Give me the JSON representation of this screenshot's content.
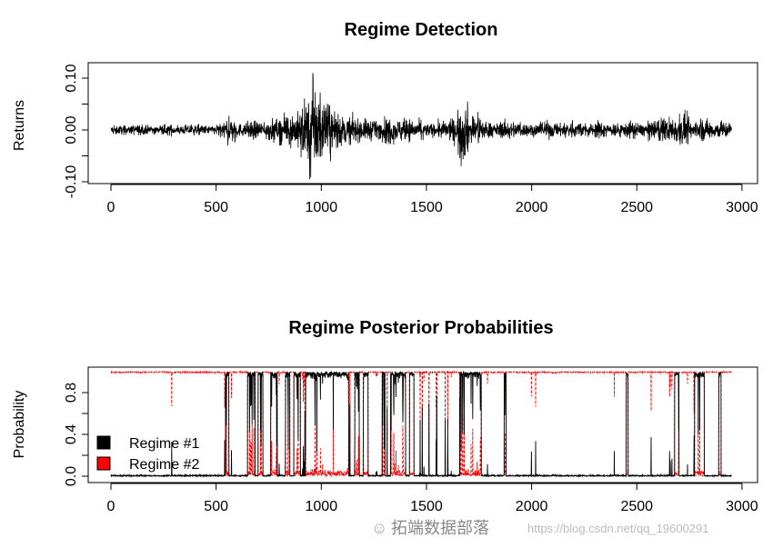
{
  "chart_data": [
    {
      "type": "line",
      "title": "Regime Detection",
      "xlabel": "",
      "ylabel": "Returns",
      "xlim": [
        0,
        3000
      ],
      "ylim": [
        -0.1,
        0.1
      ],
      "xticks": [
        0,
        500,
        1000,
        1500,
        2000,
        2500,
        3000
      ],
      "xtick_labels": [
        "0",
        "500",
        "1000",
        "1500",
        "2000",
        "2500",
        "3000"
      ],
      "yticks": [
        -0.1,
        -0.05,
        0,
        0.05,
        0.1
      ],
      "ytick_labels": [
        "-0.10",
        "0.00",
        "0.10"
      ],
      "n_obs": 2950,
      "volatility_envelope": {
        "x_bin_start": [
          0,
          50,
          100,
          150,
          200,
          250,
          300,
          350,
          400,
          450,
          500,
          550,
          600,
          650,
          700,
          750,
          800,
          850,
          900,
          950,
          1000,
          1050,
          1100,
          1150,
          1200,
          1250,
          1300,
          1350,
          1400,
          1450,
          1500,
          1550,
          1600,
          1650,
          1700,
          1750,
          1800,
          1850,
          1900,
          1950,
          2000,
          2050,
          2100,
          2150,
          2200,
          2250,
          2300,
          2350,
          2400,
          2450,
          2500,
          2550,
          2600,
          2650,
          2700,
          2750,
          2800,
          2850,
          2900
        ],
        "abs_amplitude": [
          0.01,
          0.01,
          0.012,
          0.01,
          0.01,
          0.012,
          0.01,
          0.012,
          0.012,
          0.01,
          0.015,
          0.03,
          0.015,
          0.02,
          0.02,
          0.025,
          0.03,
          0.04,
          0.07,
          0.1,
          0.06,
          0.04,
          0.03,
          0.025,
          0.025,
          0.02,
          0.03,
          0.025,
          0.025,
          0.02,
          0.015,
          0.02,
          0.025,
          0.06,
          0.035,
          0.02,
          0.015,
          0.02,
          0.02,
          0.015,
          0.015,
          0.02,
          0.015,
          0.02,
          0.015,
          0.015,
          0.02,
          0.015,
          0.015,
          0.02,
          0.015,
          0.02,
          0.025,
          0.03,
          0.035,
          0.02,
          0.025,
          0.02,
          0.02
        ]
      },
      "extremes": {
        "max": [
          960,
          0.11
        ],
        "min": [
          945,
          -0.095
        ],
        "secondary_min": [
          1665,
          -0.07
        ]
      }
    },
    {
      "type": "line",
      "title": "Regime Posterior Probabilities",
      "xlabel": "",
      "ylabel": "Probability",
      "xlim": [
        0,
        3000
      ],
      "ylim": [
        0,
        1
      ],
      "xticks": [
        0,
        500,
        1000,
        1500,
        2000,
        2500,
        3000
      ],
      "xtick_labels": [
        "0",
        "500",
        "1000",
        "1500",
        "2000",
        "2500",
        "3000"
      ],
      "yticks": [
        0,
        0.2,
        0.4,
        0.6,
        0.8
      ],
      "ytick_labels": [
        "0.0",
        "0.4",
        "0.8"
      ],
      "n_obs": 2950,
      "series": [
        {
          "name": "Regime #1",
          "color": "#000000",
          "style": "solid"
        },
        {
          "name": "Regime #2",
          "color": "#ff0000",
          "style": "dashed"
        }
      ],
      "regime1_high_intervals": [
        [
          545,
          560
        ],
        [
          650,
          685
        ],
        [
          700,
          722
        ],
        [
          760,
          790
        ],
        [
          830,
          850
        ],
        [
          870,
          900
        ],
        [
          925,
          1130
        ],
        [
          1160,
          1180
        ],
        [
          1200,
          1222
        ],
        [
          1290,
          1302
        ],
        [
          1330,
          1400
        ],
        [
          1420,
          1440
        ],
        [
          1660,
          1760
        ],
        [
          1870,
          1878
        ],
        [
          2450,
          2458
        ],
        [
          2680,
          2700
        ],
        [
          2775,
          2820
        ],
        [
          2890,
          2900
        ]
      ],
      "legend": {
        "placement": "bottom-left",
        "entries": [
          "Regime #1",
          "Regime #2"
        ]
      }
    }
  ],
  "watermark": {
    "brand": "拓端数据部落",
    "url": "https://blog.csdn.net/qq_19600291"
  }
}
